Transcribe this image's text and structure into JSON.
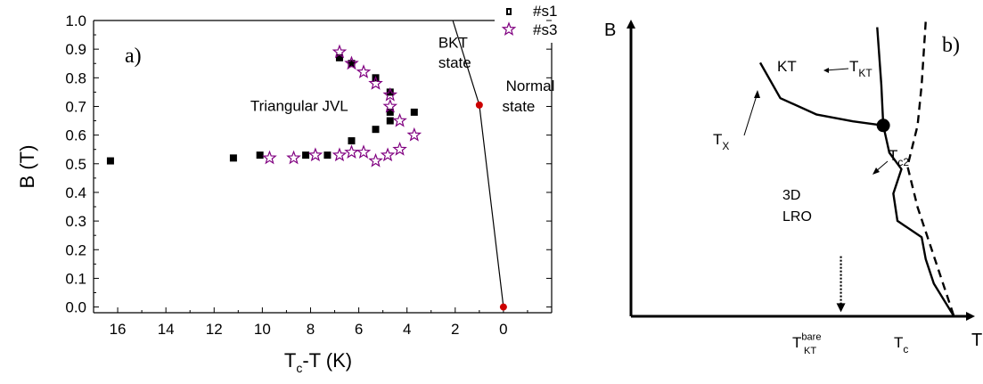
{
  "chart_data": [
    {
      "type": "scatter",
      "panel_label": "a)",
      "xlabel": "T_c-T (K)",
      "ylabel": "B (T)",
      "xlim": [
        17,
        -2
      ],
      "ylim": [
        -0.02,
        1.0
      ],
      "x_ticks": [
        "16",
        "14",
        "12",
        "10",
        "8",
        "6",
        "4",
        "2",
        "0"
      ],
      "y_ticks": [
        "0.0",
        "0.1",
        "0.2",
        "0.3",
        "0.4",
        "0.5",
        "0.6",
        "0.7",
        "0.8",
        "0.9",
        "1.0"
      ],
      "legend": {
        "position": "top-right",
        "entries": [
          "#s1",
          "#s3"
        ]
      },
      "series": [
        {
          "name": "#s1",
          "marker": "square",
          "color": "#000000",
          "points": [
            [
              16.3,
              0.51
            ],
            [
              11.2,
              0.52
            ],
            [
              10.1,
              0.53
            ],
            [
              8.2,
              0.53
            ],
            [
              7.3,
              0.53
            ],
            [
              6.3,
              0.58
            ],
            [
              5.3,
              0.62
            ],
            [
              4.7,
              0.65
            ],
            [
              4.7,
              0.68
            ],
            [
              3.7,
              0.68
            ],
            [
              4.7,
              0.75
            ],
            [
              5.3,
              0.8
            ],
            [
              6.3,
              0.85
            ],
            [
              6.8,
              0.87
            ]
          ]
        },
        {
          "name": "#s3",
          "marker": "star",
          "color": "#800080",
          "points": [
            [
              9.7,
              0.52
            ],
            [
              8.7,
              0.52
            ],
            [
              7.8,
              0.53
            ],
            [
              6.8,
              0.53
            ],
            [
              6.3,
              0.54
            ],
            [
              5.8,
              0.54
            ],
            [
              5.3,
              0.51
            ],
            [
              4.8,
              0.53
            ],
            [
              4.3,
              0.55
            ],
            [
              3.7,
              0.6
            ],
            [
              4.3,
              0.65
            ],
            [
              4.7,
              0.7
            ],
            [
              4.7,
              0.74
            ],
            [
              5.3,
              0.78
            ],
            [
              5.8,
              0.82
            ],
            [
              6.3,
              0.85
            ],
            [
              6.8,
              0.89
            ]
          ]
        }
      ],
      "boundary_line": {
        "points": [
          [
            0,
            0.0
          ],
          [
            1.0,
            0.705
          ],
          [
            2.1,
            1.0
          ]
        ],
        "color": "#000000"
      },
      "red_points": {
        "color": "#cc0000",
        "points": [
          [
            1.0,
            0.705
          ],
          [
            0,
            0.0
          ]
        ]
      },
      "annotations": [
        {
          "text": "Triangular JVL",
          "x": 10.5,
          "y": 0.685
        },
        {
          "text": "BKT",
          "x": 2.7,
          "y": 0.905
        },
        {
          "text": "state",
          "x": 2.7,
          "y": 0.835
        },
        {
          "text": "Normal",
          "x": -0.1,
          "y": 0.755
        },
        {
          "text": "state",
          "x": 0.05,
          "y": 0.683
        }
      ]
    },
    {
      "type": "line",
      "panel_label": "b)",
      "xlabel": "T",
      "ylabel": "B",
      "xlim": [
        0,
        10
      ],
      "ylim": [
        0,
        10
      ],
      "curves": [
        {
          "name": "T_X",
          "style": "solid",
          "points": [
            [
              3.2,
              9.3
            ],
            [
              3.7,
              8.0
            ],
            [
              4.6,
              7.4
            ],
            [
              5.5,
              7.15
            ],
            [
              6.25,
              7.0
            ]
          ]
        },
        {
          "name": "T_KT",
          "style": "solid",
          "points": [
            [
              6.1,
              10.6
            ],
            [
              6.2,
              8.5
            ],
            [
              6.25,
              7.0
            ]
          ]
        },
        {
          "name": "lower_curve",
          "style": "solid",
          "points": [
            [
              6.25,
              7.0
            ],
            [
              6.4,
              6.0
            ],
            [
              6.7,
              5.4
            ],
            [
              6.5,
              4.5
            ],
            [
              6.6,
              3.5
            ],
            [
              7.2,
              2.9
            ],
            [
              7.3,
              2.1
            ],
            [
              7.5,
              1.2
            ],
            [
              8.0,
              0.0
            ]
          ]
        },
        {
          "name": "T_c2",
          "style": "dashed",
          "points": [
            [
              7.3,
              10.8
            ],
            [
              7.2,
              8.5
            ],
            [
              7.1,
              7.0
            ],
            [
              6.85,
              5.5
            ],
            [
              7.1,
              4.0
            ],
            [
              7.55,
              2.0
            ],
            [
              8.0,
              0.0
            ]
          ]
        }
      ],
      "node": [
        6.25,
        7.0
      ],
      "dotted_arrow": {
        "x": 5.2,
        "y_from": 2.2,
        "y_to": 0.15
      },
      "labels": {
        "kt": {
          "text": "KT",
          "x": 5.0,
          "y": 9.2
        },
        "tkt": {
          "main": "T",
          "sub": "KT",
          "x": 6.9,
          "y": 9.5
        },
        "tx": {
          "main": "T",
          "sub": "X",
          "x": 2.6,
          "y": 4.7
        },
        "tc2": {
          "main": "T",
          "sub": "c2",
          "x": 8.3,
          "y": 4.8
        },
        "lro1": {
          "text": "3D",
          "x": 3.9,
          "y": 4.1
        },
        "lro2": {
          "text": "LRO",
          "x": 3.9,
          "y": 3.3
        },
        "tkt_bare": {
          "main": "T",
          "sub": "KT",
          "sup": "bare",
          "x": 4.8,
          "y": -1.2
        },
        "tc": {
          "main": "T",
          "sub": "c",
          "x": 7.7,
          "y": -1.2
        }
      }
    }
  ]
}
